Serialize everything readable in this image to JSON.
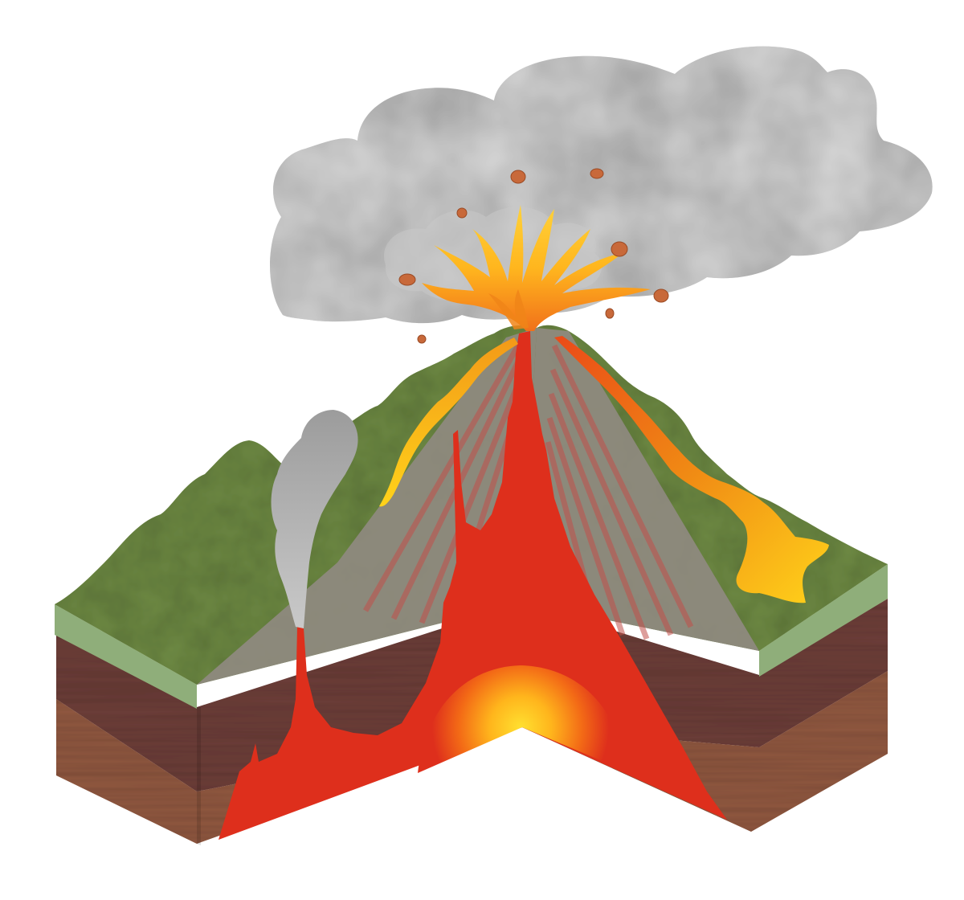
{
  "diagram": {
    "subject": "volcano-cross-section",
    "labels": []
  },
  "colors": {
    "background": "#ffffff",
    "ash_cloud": "#9a9a9a",
    "ash_cloud_light": "#c8c8c8",
    "ground_surface": "#6e8a45",
    "ground_edge": "#8fae7a",
    "soil_upper": "#6e3f3b",
    "soil_lower": "#935a42",
    "magma": "#de2f1c",
    "magma_glow": "#ffd21f",
    "lava_orange": "#ee7a12",
    "lava_yellow": "#ffc21a",
    "rock_bomb": "#c8693a",
    "inner_cone": "#8f8a80"
  }
}
